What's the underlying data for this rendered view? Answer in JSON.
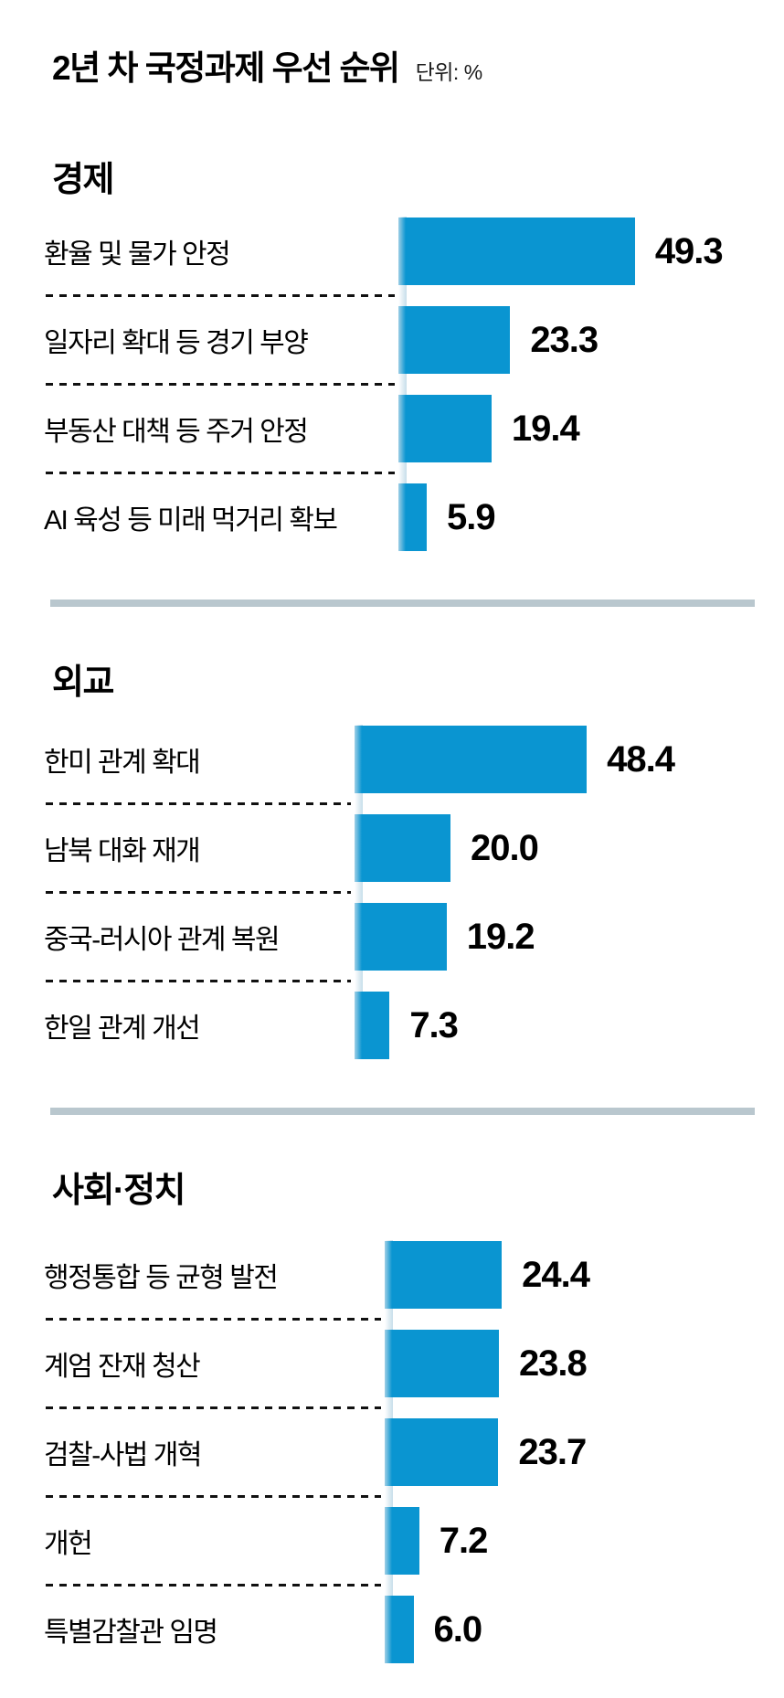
{
  "page": {
    "title": "2년 차 국정과제 우선 순위",
    "unit_label": "단위: %"
  },
  "colors": {
    "bar": "#0a95d1",
    "divider": "#b9c7ce"
  },
  "chart_data": {
    "type": "bar",
    "orientation": "horizontal",
    "title": "2년 차 국정과제 우선 순위",
    "value_unit": "%",
    "xlim": [
      0,
      52
    ],
    "grid": false,
    "legend": false,
    "sections": [
      {
        "header": "경제",
        "items": [
          {
            "label": "환율 및 물가 안정",
            "value": 49.3,
            "value_label": "49.3"
          },
          {
            "label": "일자리 확대 등 경기 부양",
            "value": 23.3,
            "value_label": "23.3"
          },
          {
            "label": "부동산 대책 등 주거 안정",
            "value": 19.4,
            "value_label": "19.4"
          },
          {
            "label": "AI 육성 등 미래 먹거리 확보",
            "value": 5.9,
            "value_label": "5.9"
          }
        ]
      },
      {
        "header": "외교",
        "items": [
          {
            "label": "한미 관계 확대",
            "value": 48.4,
            "value_label": "48.4"
          },
          {
            "label": "남북 대화 재개",
            "value": 20.0,
            "value_label": "20.0"
          },
          {
            "label": "중국-러시아 관계 복원",
            "value": 19.2,
            "value_label": "19.2"
          },
          {
            "label": "한일 관계 개선",
            "value": 7.3,
            "value_label": "7.3"
          }
        ]
      },
      {
        "header": "사회·정치",
        "items": [
          {
            "label": "행정통합 등 균형 발전",
            "value": 24.4,
            "value_label": "24.4"
          },
          {
            "label": "계엄 잔재 청산",
            "value": 23.8,
            "value_label": "23.8"
          },
          {
            "label": "검찰-사법 개혁",
            "value": 23.7,
            "value_label": "23.7"
          },
          {
            "label": "개헌",
            "value": 7.2,
            "value_label": "7.2"
          },
          {
            "label": "특별감찰관 임명",
            "value": 6.0,
            "value_label": "6.0"
          }
        ]
      }
    ]
  }
}
